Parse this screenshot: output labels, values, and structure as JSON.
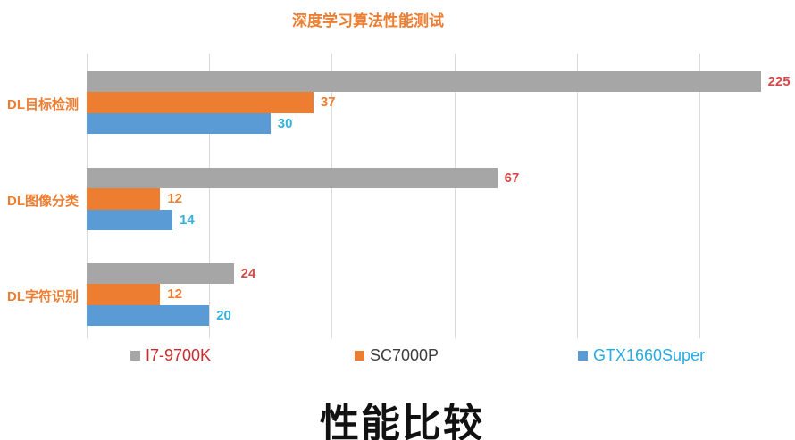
{
  "chart_data": {
    "type": "bar",
    "orientation": "horizontal",
    "title": "深度学习算法性能测试",
    "footer_title": "性能比较",
    "categories": [
      "DL目标检测",
      "DL图像分类",
      "DL字符识别"
    ],
    "series": [
      {
        "name": "I7-9700K",
        "color": "#a6a6a6",
        "label_color": "#d6494a",
        "values": [
          225,
          67,
          24
        ]
      },
      {
        "name": "SC7000P",
        "color": "#ed7d31",
        "label_color": "#ed7d31",
        "values": [
          37,
          12,
          12
        ]
      },
      {
        "name": "GTX1660Super",
        "color": "#5b9bd5",
        "label_color": "#35b1e0",
        "values": [
          30,
          14,
          20
        ]
      }
    ],
    "axis": {
      "min": 0,
      "max_visible": 110,
      "gridline_interval": 20,
      "gridlines_at": [
        0,
        20,
        40,
        60,
        80,
        100
      ],
      "grid_on": true
    },
    "legend": {
      "position": "bottom",
      "items": [
        {
          "label": "I7-9700K",
          "swatch_color": "#a6a6a6",
          "text_color": "#d02a2a"
        },
        {
          "label": "SC7000P",
          "swatch_color": "#ed7d31",
          "text_color": "#3f3f3f"
        },
        {
          "label": "GTX1660Super",
          "swatch_color": "#5b9bd5",
          "text_color": "#29abe2"
        }
      ]
    },
    "colors": {
      "title": "#ed7d31",
      "category_label": "#ed7d31",
      "grid": "#d9d9d9",
      "footer_title": "#111111",
      "background": "#ffffff"
    }
  }
}
